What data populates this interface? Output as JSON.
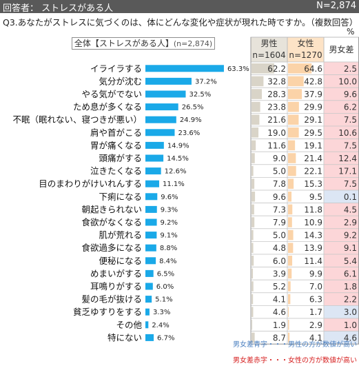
{
  "header": {
    "title": "回答者： ストレスがある人",
    "n": "N=2,874"
  },
  "question": "Q3.あなたがストレスに気づくのは、体にどんな変化や症状が現れた時ですか。（複数回答）",
  "unit": "%",
  "total_label": "全体【ストレスがある人】",
  "total_n": "(n=2,874)",
  "table": {
    "male_label": "男性",
    "male_n": "n=1604",
    "female_label": "女性",
    "female_n": "n=1270",
    "diff_label": "男女差"
  },
  "notes": {
    "blue": "男女差青字・・・男性の方が数値が高い",
    "red": "男女差赤字・・・女性の方が数値が高い"
  },
  "colors": {
    "bar": "#1aa9e8",
    "male_bar": "#d9d4c8",
    "female_bar": "#fbd3a8",
    "diff_red_bg": "#fcd6d8",
    "diff_red_text": "#d62020",
    "diff_blue_bg": "#dce6f4",
    "diff_blue_text": "#4a7fc0",
    "header_bg": "#595959"
  },
  "chart_data": {
    "type": "bar",
    "orientation": "horizontal",
    "categories": [
      "イライラする",
      "気分が沈む",
      "やる気がでない",
      "ため息が多くなる",
      "不眠（眠れない、寝つきが悪い）",
      "肩や首がこる",
      "胃が痛くなる",
      "頭痛がする",
      "泣きたくなる",
      "目のまわりがけいれんする",
      "下痢になる",
      "朝起きられない",
      "食欲がなくなる",
      "肌が荒れる",
      "食欲過多になる",
      "便秘になる",
      "めまいがする",
      "耳鳴りがする",
      "髪の毛が抜ける",
      "貧乏ゆすりをする",
      "その他",
      "特にない"
    ],
    "total": [
      63.3,
      37.2,
      32.5,
      26.5,
      24.9,
      23.6,
      14.9,
      14.5,
      12.6,
      11.1,
      9.6,
      9.3,
      9.2,
      9.1,
      8.8,
      8.4,
      6.5,
      6.0,
      5.1,
      3.3,
      2.4,
      6.7
    ],
    "total_labels": [
      "63.3%",
      "37.2%",
      "32.5%",
      "26.5%",
      "24.9%",
      "23.6%",
      "14.9%",
      "14.5%",
      "12.6%",
      "11.1%",
      "9.6%",
      "9.3%",
      "9.2%",
      "9.1%",
      "8.8%",
      "8.4%",
      "6.5%",
      "6.0%",
      "5.1%",
      "3.3%",
      "2.4%",
      "6.7%"
    ],
    "male": [
      62.2,
      32.8,
      28.3,
      23.8,
      21.6,
      19.0,
      11.6,
      9.0,
      5.0,
      7.8,
      9.6,
      7.3,
      7.9,
      5.0,
      4.8,
      6.0,
      3.9,
      5.2,
      4.1,
      4.6,
      1.9,
      8.7
    ],
    "male_labels": [
      "62.2",
      "32.8",
      "28.3",
      "23.8",
      "21.6",
      "19.0",
      "11.6",
      "9.0",
      "5.0",
      "7.8",
      "9.6",
      "7.3",
      "7.9",
      "5.0",
      "4.8",
      "6.0",
      "3.9",
      "5.2",
      "4.1",
      "4.6",
      "1.9",
      "8.7"
    ],
    "female": [
      64.6,
      42.8,
      37.9,
      29.9,
      29.1,
      29.5,
      19.1,
      21.4,
      22.1,
      15.3,
      9.5,
      11.8,
      10.9,
      14.3,
      13.9,
      11.4,
      9.9,
      7.0,
      6.3,
      1.7,
      2.9,
      4.1
    ],
    "female_labels": [
      "64.6",
      "42.8",
      "37.9",
      "29.9",
      "29.1",
      "29.5",
      "19.1",
      "21.4",
      "22.1",
      "15.3",
      "9.5",
      "11.8",
      "10.9",
      "14.3",
      "13.9",
      "11.4",
      "9.9",
      "7.0",
      "6.3",
      "1.7",
      "2.9",
      "4.1"
    ],
    "diff": [
      "2.5",
      "10.0",
      "9.6",
      "6.2",
      "7.5",
      "10.6",
      "7.5",
      "12.4",
      "17.1",
      "7.5",
      "0.1",
      "4.5",
      "2.9",
      "9.2",
      "9.1",
      "5.4",
      "6.1",
      "1.8",
      "2.2",
      "3.0",
      "1.0",
      "4.6"
    ],
    "diff_higher": [
      "female",
      "female",
      "female",
      "female",
      "female",
      "female",
      "female",
      "female",
      "female",
      "female",
      "male",
      "female",
      "female",
      "female",
      "female",
      "female",
      "female",
      "female",
      "female",
      "male",
      "female",
      "male"
    ],
    "xlim": [
      0,
      100
    ]
  }
}
